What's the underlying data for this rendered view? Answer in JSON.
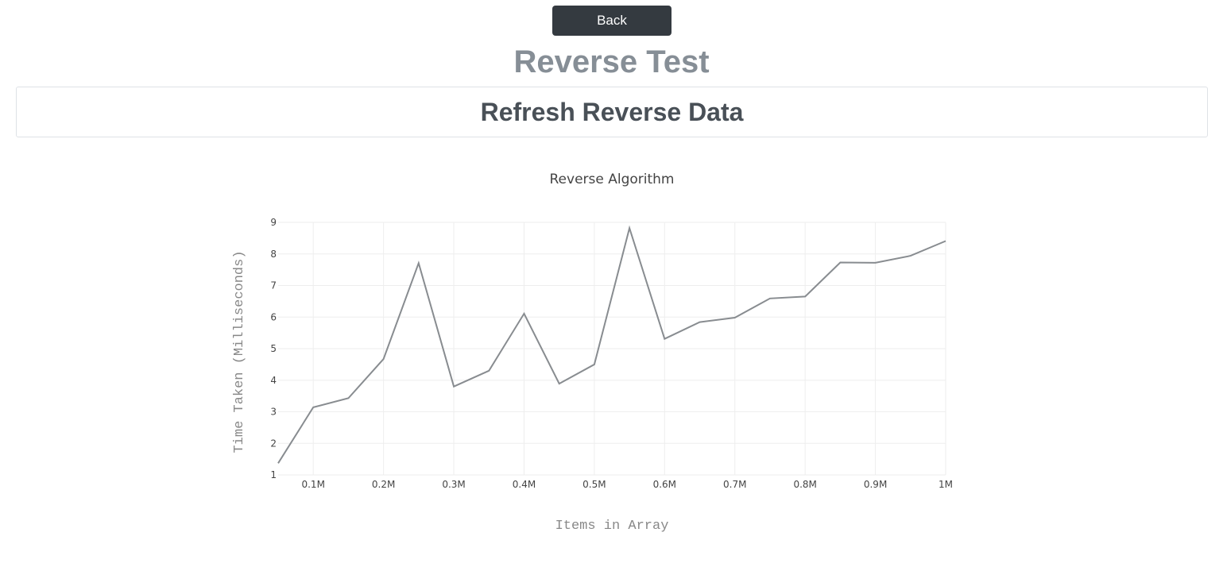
{
  "header": {
    "back_label": "Back",
    "title": "Reverse Test",
    "refresh_label": "Refresh Reverse Data"
  },
  "colors": {
    "back_button_bg": "#343a40",
    "title": "#868e96",
    "line": "#888c90"
  },
  "chart_data": {
    "type": "line",
    "title": "Reverse Algorithm",
    "xlabel": "Items in Array",
    "ylabel": "Time Taken (Milliseconds)",
    "xlim": [
      50000,
      1000000
    ],
    "ylim": [
      1,
      9
    ],
    "grid": true,
    "x_ticks": [
      {
        "value": 100000,
        "label": "0.1M"
      },
      {
        "value": 200000,
        "label": "0.2M"
      },
      {
        "value": 300000,
        "label": "0.3M"
      },
      {
        "value": 400000,
        "label": "0.4M"
      },
      {
        "value": 500000,
        "label": "0.5M"
      },
      {
        "value": 600000,
        "label": "0.6M"
      },
      {
        "value": 700000,
        "label": "0.7M"
      },
      {
        "value": 800000,
        "label": "0.8M"
      },
      {
        "value": 900000,
        "label": "0.9M"
      },
      {
        "value": 1000000,
        "label": "1M"
      }
    ],
    "y_ticks": [
      {
        "value": 1,
        "label": "1"
      },
      {
        "value": 2,
        "label": "2"
      },
      {
        "value": 3,
        "label": "3"
      },
      {
        "value": 4,
        "label": "4"
      },
      {
        "value": 5,
        "label": "5"
      },
      {
        "value": 6,
        "label": "6"
      },
      {
        "value": 7,
        "label": "7"
      },
      {
        "value": 8,
        "label": "8"
      },
      {
        "value": 9,
        "label": "9"
      }
    ],
    "series": [
      {
        "x": [
          50000,
          100000,
          150000,
          200000,
          250000,
          300000,
          350000,
          400000,
          450000,
          500000,
          550000,
          600000,
          650000,
          700000,
          750000,
          800000,
          850000,
          900000,
          950000,
          1000000
        ],
        "y": [
          1.37,
          3.14,
          3.43,
          4.67,
          7.71,
          3.8,
          4.3,
          6.11,
          3.89,
          4.5,
          8.82,
          5.31,
          5.84,
          5.98,
          6.59,
          6.65,
          7.73,
          7.72,
          7.94,
          8.41
        ]
      }
    ]
  }
}
